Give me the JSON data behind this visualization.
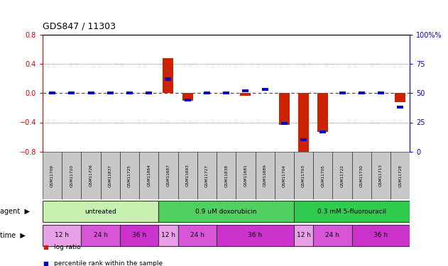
{
  "title": "GDS847 / 11303",
  "samples": [
    "GSM11709",
    "GSM11720",
    "GSM11726",
    "GSM11837",
    "GSM11725",
    "GSM11864",
    "GSM11687",
    "GSM11693",
    "GSM11727",
    "GSM11838",
    "GSM11681",
    "GSM11689",
    "GSM11704",
    "GSM11703",
    "GSM11705",
    "GSM11722",
    "GSM11730",
    "GSM11713",
    "GSM11728"
  ],
  "log_ratio": [
    0.0,
    0.0,
    0.0,
    0.0,
    0.0,
    0.0,
    0.48,
    -0.1,
    0.0,
    0.0,
    -0.04,
    0.0,
    -0.43,
    -0.85,
    -0.53,
    0.0,
    0.0,
    0.0,
    -0.12
  ],
  "percentile_rank": [
    50,
    50,
    50,
    50,
    50,
    50,
    62,
    44,
    50,
    50,
    52,
    53,
    24,
    10,
    17,
    50,
    50,
    50,
    38
  ],
  "agents": [
    {
      "label": "untreated",
      "start": 0,
      "end": 5,
      "color": "#c8f0b0"
    },
    {
      "label": "0.9 uM doxorubicin",
      "start": 6,
      "end": 12,
      "color": "#50d060"
    },
    {
      "label": "0.3 mM 5-fluorouracil",
      "start": 13,
      "end": 18,
      "color": "#30cc50"
    }
  ],
  "time_groups": [
    {
      "label": "12 h",
      "start": 0,
      "end": 1,
      "color": "#e8a0e8"
    },
    {
      "label": "24 h",
      "start": 2,
      "end": 3,
      "color": "#d855d8"
    },
    {
      "label": "36 h",
      "start": 4,
      "end": 5,
      "color": "#cc33cc"
    },
    {
      "label": "12 h",
      "start": 6,
      "end": 6,
      "color": "#e8a0e8"
    },
    {
      "label": "24 h",
      "start": 7,
      "end": 8,
      "color": "#d855d8"
    },
    {
      "label": "36 h",
      "start": 9,
      "end": 12,
      "color": "#cc33cc"
    },
    {
      "label": "12 h",
      "start": 13,
      "end": 13,
      "color": "#e8a0e8"
    },
    {
      "label": "24 h",
      "start": 14,
      "end": 15,
      "color": "#d855d8"
    },
    {
      "label": "36 h",
      "start": 16,
      "end": 18,
      "color": "#cc33cc"
    }
  ],
  "ylim_left": [
    -0.8,
    0.8
  ],
  "ylim_right": [
    0,
    100
  ],
  "yticks_left": [
    -0.8,
    -0.4,
    0.0,
    0.4,
    0.8
  ],
  "yticks_right": [
    0,
    25,
    50,
    75,
    100
  ],
  "bar_color_red": "#cc2200",
  "bar_color_blue": "#0000cc",
  "hline_color": "#cc0000",
  "dotted_color": "#555555",
  "title_color": "#000000",
  "left_axis_color": "#cc0000",
  "right_axis_color": "#0000cc",
  "sample_bg_color": "#c8c8c8",
  "legend_red_label": "log ratio",
  "legend_blue_label": "percentile rank within the sample"
}
